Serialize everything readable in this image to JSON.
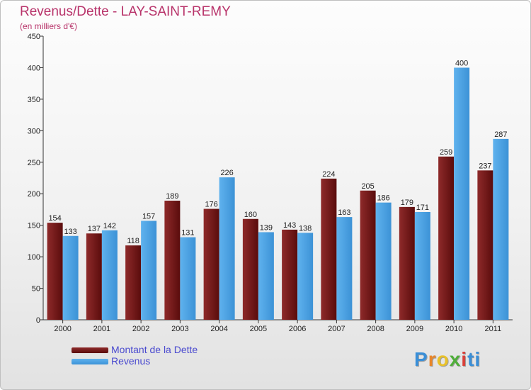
{
  "header": {
    "title": "Revenus/Dette - LAY-SAINT-REMY",
    "subtitle": "(en milliers d'€)"
  },
  "chart_data": {
    "type": "bar",
    "title": "Revenus/Dette - LAY-SAINT-REMY",
    "ylabel": "(en milliers d'€)",
    "xlabel": "",
    "categories": [
      "2000",
      "2001",
      "2002",
      "2003",
      "2004",
      "2005",
      "2006",
      "2007",
      "2008",
      "2009",
      "2010",
      "2011"
    ],
    "series": [
      {
        "name": "Montant de la Dette",
        "color": "#7a1414",
        "values": [
          154,
          137,
          118,
          189,
          176,
          160,
          143,
          224,
          205,
          179,
          259,
          237
        ]
      },
      {
        "name": "Revenus",
        "color": "#4da6e8",
        "values": [
          133,
          142,
          157,
          131,
          226,
          139,
          138,
          163,
          186,
          171,
          400,
          287
        ]
      }
    ],
    "ylim": [
      0,
      450
    ],
    "yticks": [
      0,
      50,
      100,
      150,
      200,
      250,
      300,
      350,
      400,
      450
    ],
    "grid": false,
    "legend": "bottom-left"
  },
  "legend": {
    "items": [
      {
        "label": "Montant de la Dette",
        "color": "#7a1414"
      },
      {
        "label": "Revenus",
        "color": "#4da6e8"
      }
    ]
  },
  "logo": {
    "text": "Proxiti",
    "letters": [
      "P",
      "r",
      "o",
      "x",
      "i",
      "ti"
    ]
  }
}
